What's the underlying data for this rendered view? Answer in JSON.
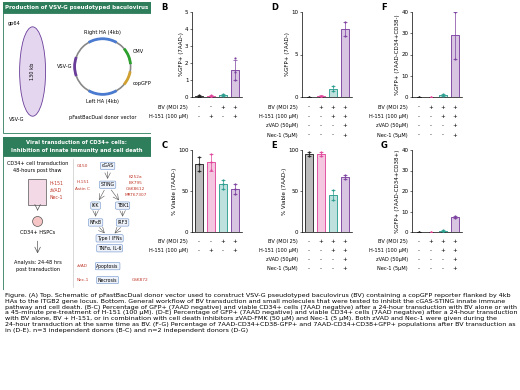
{
  "panel_a": {
    "top_header": "Production of VSV-G pseudotyped baculovirus",
    "baculovirus_labels": [
      "gp64",
      "130 kb",
      "VSV-G"
    ],
    "vector_labels": [
      "Right HA (4kb)",
      "CMV",
      "VSV-G",
      "copGFP",
      "Left HA (4kb)",
      "pFastBacDual donor vector"
    ],
    "bottom_header": [
      "Viral transduction of CD34+ cells:",
      "Inhibition of innate immunity and cell death"
    ],
    "workflow": [
      "CD34+ cell transduction",
      "48-hours post thaw",
      "CD34+ HSPCs",
      "Analysis: 24-48 hrs",
      "post transduction"
    ],
    "workflow_inhibitors": [
      "H-151",
      "zVAD",
      "Nec-1"
    ],
    "pathway_nodes": [
      "cGAS",
      "STING",
      "IKK",
      "TBK1",
      "NFκB",
      "IRF3",
      "Type I IFNs",
      "TNFα, IL-6",
      "Apoptosis",
      "Necrosis"
    ],
    "pathway_inhibitors": [
      "G150",
      "H-151",
      "Astin C",
      "K252a",
      "BX795",
      "GSK8612",
      "MRT67307",
      "zVAD",
      "GSK872",
      "Nec-1"
    ]
  },
  "chart_data": [
    {
      "panel": "B",
      "type": "bar",
      "ylabel": "%GFP+ (7AAD-)",
      "categories": [
        null,
        null,
        null,
        null
      ],
      "values": [
        0.05,
        0.05,
        0.1,
        1.6
      ],
      "errors": [
        0.05,
        0.05,
        0.05,
        0.6
      ],
      "points": [
        [
          0,
          0.05,
          0.1
        ],
        [
          0,
          0.05,
          0.1
        ],
        [
          0.05,
          0.1,
          0.15
        ],
        [
          1.0,
          1.5,
          2.3
        ]
      ],
      "colors": [
        "#222222",
        "#e0449a",
        "#2a9d8f",
        "#7b3fa0"
      ],
      "conditions": [
        {
          "name": "BV (MOI 25)",
          "signs": [
            "-",
            "-",
            "+",
            "+"
          ]
        },
        {
          "name": "H-151 (100 µM)",
          "signs": [
            "-",
            "+",
            "-",
            "+"
          ]
        }
      ],
      "ylim": [
        0,
        5
      ],
      "yticks": [
        0,
        1,
        2,
        3,
        4,
        5
      ],
      "tick_labels": "y"
    },
    {
      "panel": "C",
      "type": "bar",
      "ylabel": "% Viable (7AAD-)",
      "categories": [
        null,
        null,
        null,
        null
      ],
      "values": [
        83,
        85,
        58,
        52
      ],
      "errors": [
        8,
        10,
        5,
        6
      ],
      "points": [
        [
          75,
          83,
          91
        ],
        [
          76,
          85,
          95
        ],
        [
          53,
          58,
          63
        ],
        [
          46,
          52,
          58
        ]
      ],
      "colors": [
        "#222222",
        "#e0449a",
        "#2a9d8f",
        "#7b3fa0"
      ],
      "conditions": [
        {
          "name": "BV (MOI 25)",
          "signs": [
            "-",
            "-",
            "+",
            "+"
          ]
        },
        {
          "name": "H-151 (100 µM)",
          "signs": [
            "-",
            "+",
            "-",
            "+"
          ]
        }
      ],
      "ylim": [
        0,
        100
      ],
      "yticks": [
        0,
        50,
        100
      ],
      "tick_labels": "y"
    },
    {
      "panel": "D",
      "type": "bar",
      "ylabel": "%GFP+ (7AAD-)",
      "categories": [
        null,
        null,
        null,
        null
      ],
      "values": [
        0,
        0.1,
        1.0,
        8.0
      ],
      "errors": [
        0,
        0.1,
        0.3,
        0.8
      ],
      "points": [
        [
          0,
          0
        ],
        [
          0.05,
          0.15
        ],
        [
          0.7,
          1.3
        ],
        [
          7.2,
          8.8
        ]
      ],
      "colors": [
        "#222222",
        "#e0449a",
        "#2a9d8f",
        "#7b3fa0"
      ],
      "conditions": [
        {
          "name": "BV (MOI 25)",
          "signs": [
            "-",
            "+",
            "+",
            "+"
          ]
        },
        {
          "name": "H-151 (100 µM)",
          "signs": [
            "-",
            "-",
            "+",
            "+"
          ]
        },
        {
          "name": "zVAD (50µM)",
          "signs": [
            "-",
            "-",
            "-",
            "+"
          ]
        },
        {
          "name": "Nec-1 (5µM)",
          "signs": [
            "-",
            "-",
            "-",
            "+"
          ]
        }
      ],
      "ylim": [
        0,
        10
      ],
      "yticks": [
        0,
        5,
        10
      ],
      "tick_labels": "y"
    },
    {
      "panel": "E",
      "type": "bar",
      "ylabel": "% Viable (7AAD-)",
      "categories": [
        null,
        null,
        null,
        null
      ],
      "values": [
        95,
        95,
        45,
        67
      ],
      "errors": [
        2,
        2,
        6,
        2
      ],
      "points": [
        [
          93,
          97
        ],
        [
          93,
          97
        ],
        [
          39,
          51
        ],
        [
          65,
          69
        ]
      ],
      "colors": [
        "#222222",
        "#e0449a",
        "#2a9d8f",
        "#7b3fa0"
      ],
      "conditions": [
        {
          "name": "BV (MOI 25)",
          "signs": [
            "-",
            "+",
            "+",
            "+"
          ]
        },
        {
          "name": "H-151 (100 µM)",
          "signs": [
            "-",
            "-",
            "+",
            "+"
          ]
        },
        {
          "name": "zVAD (50µM)",
          "signs": [
            "-",
            "-",
            "-",
            "+"
          ]
        },
        {
          "name": "Nec-1 (5µM)",
          "signs": [
            "-",
            "-",
            "-",
            "+"
          ]
        }
      ],
      "ylim": [
        0,
        100
      ],
      "yticks": [
        0,
        50,
        100
      ],
      "tick_labels": "y"
    },
    {
      "panel": "F",
      "type": "bar",
      "ylabel": "%GFP+ (7AAD-CD34+CD38-)",
      "categories": [
        null,
        null,
        null,
        null
      ],
      "values": [
        0,
        0,
        1,
        29
      ],
      "errors": [
        0,
        0,
        0.5,
        11
      ],
      "points": [
        [
          0,
          0
        ],
        [
          0,
          0
        ],
        [
          0.5,
          1.5
        ],
        [
          18,
          40
        ]
      ],
      "colors": [
        "#222222",
        "#e0449a",
        "#2a9d8f",
        "#7b3fa0"
      ],
      "conditions": [
        {
          "name": "BV (MOI 25)",
          "signs": [
            "-",
            "+",
            "+",
            "+"
          ]
        },
        {
          "name": "H-151 (100 µM)",
          "signs": [
            "-",
            "-",
            "+",
            "+"
          ]
        },
        {
          "name": "zVAD (50µM)",
          "signs": [
            "-",
            "-",
            "-",
            "+"
          ]
        },
        {
          "name": "Nec-1 (5µM)",
          "signs": [
            "-",
            "-",
            "-",
            "+"
          ]
        }
      ],
      "ylim": [
        0,
        40
      ],
      "yticks": [
        0,
        10,
        20,
        30,
        40
      ],
      "tick_labels": "y"
    },
    {
      "panel": "G",
      "type": "bar",
      "ylabel": "%GFP+ (7AAD-CD34+CD38+)",
      "categories": [
        null,
        null,
        null,
        null
      ],
      "values": [
        0,
        0,
        0.5,
        7.5
      ],
      "errors": [
        0,
        0,
        0.3,
        0.5
      ],
      "points": [
        [
          0,
          0
        ],
        [
          0,
          0
        ],
        [
          0.2,
          0.8
        ],
        [
          7,
          8
        ]
      ],
      "colors": [
        "#222222",
        "#e0449a",
        "#2a9d8f",
        "#7b3fa0"
      ],
      "conditions": [
        {
          "name": "BV (MOI 25)",
          "signs": [
            "-",
            "+",
            "+",
            "+"
          ]
        },
        {
          "name": "H-151 (100 µM)",
          "signs": [
            "-",
            "-",
            "+",
            "+"
          ]
        },
        {
          "name": "zVAD (50µM)",
          "signs": [
            "-",
            "-",
            "-",
            "+"
          ]
        },
        {
          "name": "Nec-1 (5µM)",
          "signs": [
            "-",
            "-",
            "-",
            "+"
          ]
        }
      ],
      "ylim": [
        0,
        40
      ],
      "yticks": [
        0,
        10,
        20,
        30,
        40
      ],
      "tick_labels": "y"
    }
  ],
  "caption": "Figure. (A) Top. Schematic of pFastBacDual donor vector used to construct VSV-G pseudotyped baculovirus (BV) containing a copGFP reporter flanked by 4kb HAs to the ITGB2 gene locus. Bottom. General workflow of BV transduction and small molecules that were tested to inhibit the cGAS-STING innate immune pathway and cell death. (B-C) Percentage of GFP+ (7AAD negative) and viable CD34+ cells (7AAD negative) after a 24-hour transduction with BV alone or with a 45-minute pre-treatment of H-151 (100 µM). (D-E) Percentage of GFP+ (7AAD negative) and viable CD34+ cells (7AAD negative) after a 24-hour transduction with BV alone, BV + H-151, or in combination with cell death inhibitors zVAD-FMK (50 µM) and Nec-1 (5 µM). Both zVAD and Nec-1 were given during the 24-hour transduction at the same time as BV. (F-G) Percentage of 7AAD-CD34+CD38-GFP+ and 7AAD-CD34+CD38+GFP+ populations after BV transduction as in (D-E). n=3 independent donors (B-C) and n=2 independent donors (D-G)"
}
